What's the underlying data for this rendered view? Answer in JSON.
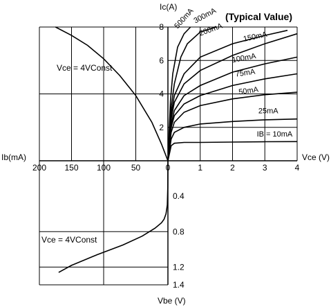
{
  "top_label": "",
  "chart_data": [
    {
      "type": "line",
      "quadrant": "output-characteristic",
      "title": "(Typical Value)",
      "xlabel": "Vce (V)",
      "ylabel": "Ic(A)",
      "xlim": [
        0,
        4
      ],
      "ylim": [
        0,
        8
      ],
      "xticks": [
        "1",
        "2",
        "3",
        "4"
      ],
      "yticks": [
        "2",
        "4",
        "6",
        "8"
      ],
      "series": [
        {
          "name": "IB = 10mA",
          "x": [
            0,
            0.1,
            0.2,
            0.5,
            1,
            2,
            3,
            4
          ],
          "y": [
            0,
            0.9,
            1.05,
            1.1,
            1.1,
            1.12,
            1.14,
            1.15
          ]
        },
        {
          "name": "25mA",
          "x": [
            0,
            0.1,
            0.2,
            0.5,
            1,
            2,
            3,
            4
          ],
          "y": [
            0,
            1.3,
            1.7,
            2.0,
            2.2,
            2.35,
            2.45,
            2.5
          ]
        },
        {
          "name": "50mA",
          "x": [
            0,
            0.1,
            0.2,
            0.5,
            1,
            2,
            3,
            4
          ],
          "y": [
            0,
            1.7,
            2.3,
            2.9,
            3.3,
            3.7,
            3.95,
            4.1
          ]
        },
        {
          "name": "75mA",
          "x": [
            0,
            0.1,
            0.2,
            0.5,
            1,
            2,
            3,
            4
          ],
          "y": [
            0,
            2.0,
            2.7,
            3.4,
            3.9,
            4.5,
            4.9,
            5.2
          ]
        },
        {
          "name": "100mA",
          "x": [
            0,
            0.1,
            0.2,
            0.5,
            1,
            2,
            3,
            4
          ],
          "y": [
            0,
            2.2,
            3.0,
            3.9,
            4.5,
            5.3,
            5.8,
            6.2
          ]
        },
        {
          "name": "150mA",
          "x": [
            0,
            0.1,
            0.2,
            0.5,
            1,
            2,
            3,
            4
          ],
          "y": [
            0,
            2.5,
            3.5,
            4.6,
            5.4,
            6.3,
            7.0,
            7.6
          ]
        },
        {
          "name": "200mA",
          "x": [
            0,
            0.1,
            0.2,
            0.5,
            1,
            2,
            3,
            3.7
          ],
          "y": [
            0,
            2.8,
            3.9,
            5.2,
            6.2,
            7.0,
            7.5,
            7.8
          ]
        },
        {
          "name": "300mA",
          "x": [
            0,
            0.1,
            0.2,
            0.4,
            0.6,
            1.0,
            1.5
          ],
          "y": [
            0,
            3.2,
            4.6,
            6.2,
            7.0,
            7.7,
            8.0
          ]
        },
        {
          "name": "500mA",
          "x": [
            0,
            0.08,
            0.15,
            0.3,
            0.5,
            0.7
          ],
          "y": [
            0,
            3.6,
            5.2,
            6.8,
            7.6,
            8.0
          ]
        }
      ]
    },
    {
      "type": "line",
      "quadrant": "input-characteristic-current",
      "xlabel": "Ib(mA)",
      "xlim": [
        200,
        0
      ],
      "ylim": [
        0,
        8
      ],
      "xticks": [
        "200",
        "150",
        "100",
        "50",
        "0"
      ],
      "series": [
        {
          "name": "Vce = 4VConst",
          "x": [
            0,
            10,
            25,
            50,
            75,
            100,
            125,
            150,
            175
          ],
          "y": [
            0,
            1.0,
            2.3,
            3.9,
            5.1,
            6.1,
            6.9,
            7.5,
            8.0
          ]
        }
      ]
    },
    {
      "type": "line",
      "quadrant": "input-characteristic-voltage",
      "ylabel": "Vbe (V)",
      "xlim": [
        200,
        0
      ],
      "ylim": [
        0,
        1.4
      ],
      "yticks": [
        "0.4",
        "0.8",
        "1.2",
        "1.4"
      ],
      "series": [
        {
          "name": "Vce = 4VConst",
          "x": [
            0,
            0.2,
            1,
            3,
            6,
            10,
            20,
            40,
            70,
            110,
            150,
            170
          ],
          "y": [
            0,
            0.3,
            0.5,
            0.6,
            0.66,
            0.7,
            0.76,
            0.85,
            0.95,
            1.06,
            1.18,
            1.26
          ]
        }
      ]
    }
  ]
}
